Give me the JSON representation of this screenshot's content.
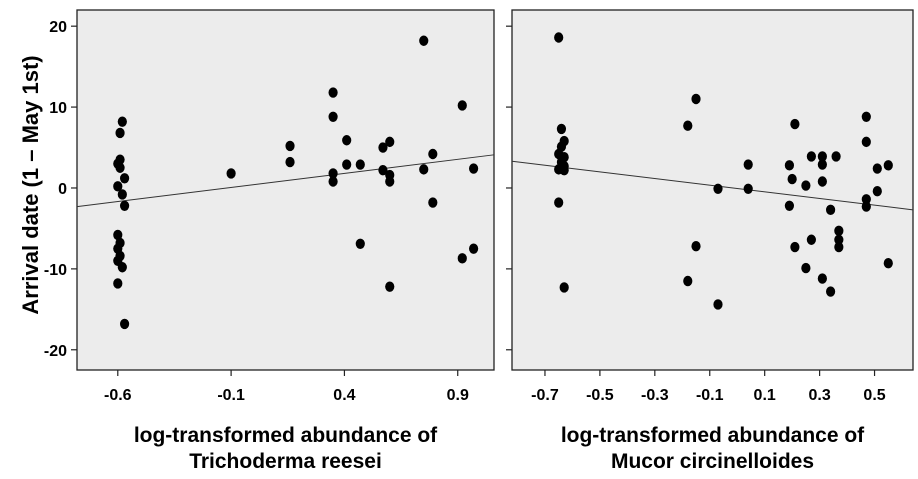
{
  "ylabel": "Arrival date (1 – May 1st)",
  "chart_data": [
    {
      "type": "scatter",
      "xlabel_line1": "log-transformed abundance of",
      "xlabel_line2": "Trichoderma reesei",
      "ylabel": "Arrival date (1 – May 1st)",
      "xlim": [
        -0.78,
        1.06
      ],
      "ylim": [
        -22.5,
        22
      ],
      "xticks": [
        -0.6,
        -0.1,
        0.4,
        0.9
      ],
      "xtick_labels": [
        "-0.6",
        "-0.1",
        "0.4",
        "0.9"
      ],
      "yticks": [
        20,
        10,
        0,
        -10,
        -20
      ],
      "ytick_labels": [
        "20",
        "10",
        "0",
        "-10",
        "-20"
      ],
      "grid": false,
      "fit_line": {
        "x": [
          -0.78,
          1.06
        ],
        "y": [
          -2.3,
          4.1
        ]
      },
      "points": [
        {
          "x": -0.58,
          "y": 8.2
        },
        {
          "x": -0.59,
          "y": 6.8
        },
        {
          "x": -0.59,
          "y": 3.5
        },
        {
          "x": -0.6,
          "y": 3.0
        },
        {
          "x": -0.59,
          "y": 2.5
        },
        {
          "x": -0.57,
          "y": 1.2
        },
        {
          "x": -0.6,
          "y": 0.2
        },
        {
          "x": -0.58,
          "y": -0.8
        },
        {
          "x": -0.57,
          "y": -2.2
        },
        {
          "x": -0.6,
          "y": -5.8
        },
        {
          "x": -0.59,
          "y": -6.8
        },
        {
          "x": -0.6,
          "y": -7.5
        },
        {
          "x": -0.59,
          "y": -8.4
        },
        {
          "x": -0.6,
          "y": -9.0
        },
        {
          "x": -0.58,
          "y": -9.8
        },
        {
          "x": -0.6,
          "y": -11.8
        },
        {
          "x": -0.57,
          "y": -16.8
        },
        {
          "x": -0.1,
          "y": 1.8
        },
        {
          "x": 0.16,
          "y": 5.2
        },
        {
          "x": 0.16,
          "y": 3.2
        },
        {
          "x": 0.35,
          "y": 11.8
        },
        {
          "x": 0.35,
          "y": 8.8
        },
        {
          "x": 0.35,
          "y": 1.8
        },
        {
          "x": 0.35,
          "y": 0.8
        },
        {
          "x": 0.41,
          "y": 5.9
        },
        {
          "x": 0.41,
          "y": 2.9
        },
        {
          "x": 0.47,
          "y": 2.9
        },
        {
          "x": 0.47,
          "y": -6.9
        },
        {
          "x": 0.57,
          "y": 5.0
        },
        {
          "x": 0.57,
          "y": 2.2
        },
        {
          "x": 0.6,
          "y": 5.7
        },
        {
          "x": 0.6,
          "y": 1.6
        },
        {
          "x": 0.6,
          "y": 0.8
        },
        {
          "x": 0.6,
          "y": -12.2
        },
        {
          "x": 0.75,
          "y": 18.2
        },
        {
          "x": 0.75,
          "y": 2.3
        },
        {
          "x": 0.79,
          "y": 4.2
        },
        {
          "x": 0.79,
          "y": -1.8
        },
        {
          "x": 0.92,
          "y": 10.2
        },
        {
          "x": 0.92,
          "y": -8.7
        },
        {
          "x": 0.97,
          "y": 2.4
        },
        {
          "x": 0.97,
          "y": -7.5
        }
      ]
    },
    {
      "type": "scatter",
      "xlabel_line1": "log-transformed abundance of",
      "xlabel_line2": "Mucor circinelloides",
      "ylabel": "",
      "xlim": [
        -0.82,
        0.64
      ],
      "ylim": [
        -22.5,
        22
      ],
      "xticks": [
        -0.7,
        -0.5,
        -0.3,
        -0.1,
        0.1,
        0.3,
        0.5
      ],
      "xtick_labels": [
        "-0.7",
        "-0.5",
        "-0.3",
        "-0.1",
        "0.1",
        "0.3",
        "0.5"
      ],
      "yticks": [
        20,
        10,
        0,
        -10,
        -20
      ],
      "ytick_labels": [
        "20",
        "10",
        "0",
        "-10",
        "-20"
      ],
      "grid": false,
      "fit_line": {
        "x": [
          -0.82,
          0.64
        ],
        "y": [
          3.3,
          -2.7
        ]
      },
      "points": [
        {
          "x": -0.65,
          "y": 18.6
        },
        {
          "x": -0.64,
          "y": 7.3
        },
        {
          "x": -0.63,
          "y": 5.8
        },
        {
          "x": -0.64,
          "y": 5.1
        },
        {
          "x": -0.65,
          "y": 4.2
        },
        {
          "x": -0.63,
          "y": 3.8
        },
        {
          "x": -0.64,
          "y": 3.2
        },
        {
          "x": -0.63,
          "y": 2.7
        },
        {
          "x": -0.65,
          "y": 2.3
        },
        {
          "x": -0.63,
          "y": 2.2
        },
        {
          "x": -0.65,
          "y": -1.8
        },
        {
          "x": -0.63,
          "y": -12.3
        },
        {
          "x": -0.18,
          "y": 7.7
        },
        {
          "x": -0.15,
          "y": 11.0
        },
        {
          "x": -0.15,
          "y": -7.2
        },
        {
          "x": -0.18,
          "y": -11.5
        },
        {
          "x": -0.07,
          "y": -0.1
        },
        {
          "x": -0.07,
          "y": -14.4
        },
        {
          "x": 0.04,
          "y": 2.9
        },
        {
          "x": 0.04,
          "y": -0.1
        },
        {
          "x": 0.19,
          "y": 2.8
        },
        {
          "x": 0.2,
          "y": 1.1
        },
        {
          "x": 0.19,
          "y": -2.2
        },
        {
          "x": 0.21,
          "y": 7.9
        },
        {
          "x": 0.21,
          "y": -7.3
        },
        {
          "x": 0.25,
          "y": 0.3
        },
        {
          "x": 0.25,
          "y": -9.9
        },
        {
          "x": 0.27,
          "y": 3.9
        },
        {
          "x": 0.27,
          "y": -6.4
        },
        {
          "x": 0.31,
          "y": 3.9
        },
        {
          "x": 0.31,
          "y": 2.9
        },
        {
          "x": 0.31,
          "y": 0.8
        },
        {
          "x": 0.31,
          "y": -11.2
        },
        {
          "x": 0.34,
          "y": -2.7
        },
        {
          "x": 0.34,
          "y": -12.8
        },
        {
          "x": 0.36,
          "y": 3.9
        },
        {
          "x": 0.37,
          "y": -5.3
        },
        {
          "x": 0.37,
          "y": -6.4
        },
        {
          "x": 0.37,
          "y": -7.3
        },
        {
          "x": 0.47,
          "y": 8.8
        },
        {
          "x": 0.47,
          "y": 5.7
        },
        {
          "x": 0.47,
          "y": -1.4
        },
        {
          "x": 0.47,
          "y": -2.3
        },
        {
          "x": 0.51,
          "y": 2.4
        },
        {
          "x": 0.51,
          "y": -0.4
        },
        {
          "x": 0.55,
          "y": 2.8
        },
        {
          "x": 0.55,
          "y": -9.3
        }
      ]
    }
  ]
}
